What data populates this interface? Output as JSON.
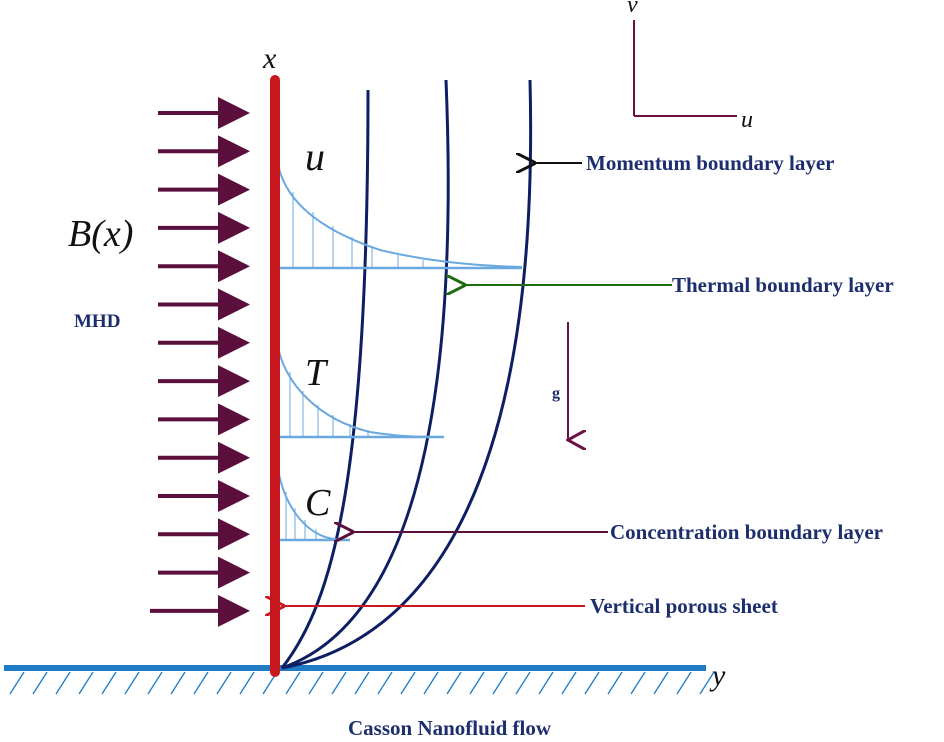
{
  "labels": {
    "axis_x": "x",
    "axis_y": "y",
    "vel_v": "v",
    "vel_u": "u",
    "field": "B(x)",
    "mhd": "MHD",
    "gravity": "g",
    "profile_u": "u",
    "profile_t": "T",
    "profile_c": "C",
    "momentum": "Momentum boundary layer",
    "thermal": "Thermal boundary layer",
    "concentration": "Concentration boundary layer",
    "sheet": "Vertical porous sheet",
    "caption": "Casson Nanofluid flow"
  },
  "colors": {
    "sheet": "#c8171f",
    "ground": "#1f7bc4",
    "hatch": "#1f7bc4",
    "field_arrows": "#5b0f3c",
    "curves": "#0d1e63",
    "profiles": "#6aa8e0",
    "text": "#1c2e6e",
    "thermal_arrow": "#1f6b12",
    "sheet_arrow": "#c8171f",
    "conc_arrow": "#5b0f3c",
    "gravity": "#6b1040"
  },
  "field_arrow_count": 14
}
